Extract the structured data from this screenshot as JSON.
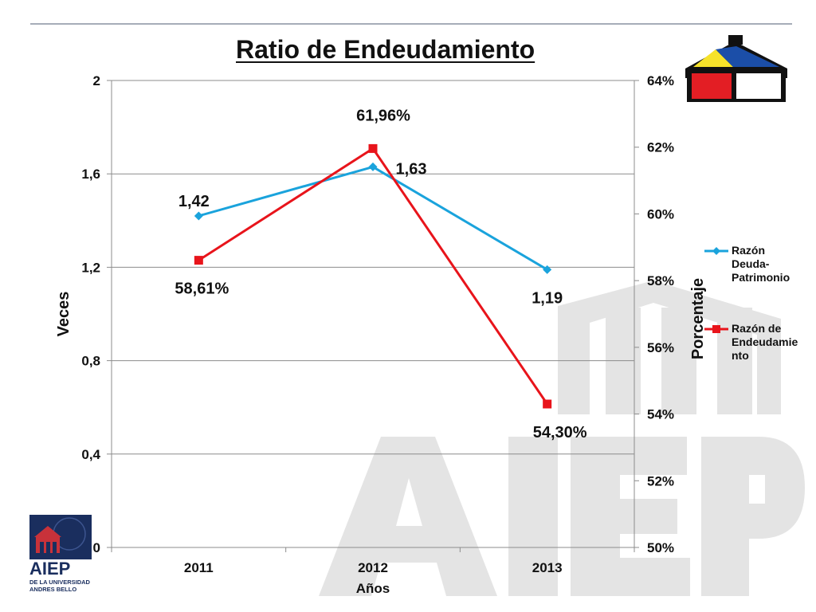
{
  "colors": {
    "series1": "#1aa3dc",
    "series2": "#e8141b",
    "axis": "#8c8c8c",
    "watermark": "#e6e6e6",
    "logo_navy": "#1a2e5e",
    "logo_red": "#e31e24",
    "logo_yellow": "#f6e22a",
    "logo_blue": "#1b4ea8"
  },
  "logo": {
    "brand": "AIEP",
    "line1": "DE LA UNIVERSIDAD",
    "line2": "ANDRES BELLO"
  },
  "watermark": {
    "text": "AIEP"
  },
  "chart_data": {
    "type": "line",
    "title": "Ratio de Endeudamiento",
    "xlabel": "Años",
    "ylabel": "Veces",
    "y2label": "Porcentaje",
    "categories": [
      "2011",
      "2012",
      "2013"
    ],
    "y_ticks": [
      "0",
      "0,4",
      "0,8",
      "1,2",
      "1,6",
      "2"
    ],
    "y2_ticks": [
      "50%",
      "52%",
      "54%",
      "56%",
      "58%",
      "60%",
      "62%",
      "64%"
    ],
    "ylim": [
      0,
      2
    ],
    "y2lim": [
      50,
      64
    ],
    "grid": true,
    "legend_position": "right",
    "series": [
      {
        "name": "Razón Deuda-Patrimonio",
        "axis": "left",
        "marker": "diamond",
        "values": [
          1.42,
          1.63,
          1.19
        ],
        "labels": [
          "1,42",
          "1,63",
          "1,19"
        ]
      },
      {
        "name": "Razón de Endeudamiento",
        "axis": "right",
        "marker": "square",
        "values": [
          58.61,
          61.96,
          54.3
        ],
        "labels": [
          "58,61%",
          "61,96%",
          "54,30%"
        ]
      }
    ],
    "legend": [
      "Razón Deuda-Patrimonio",
      "Razón de Endeudamiento"
    ],
    "legend_display": [
      [
        "Razón",
        "Deuda-",
        "Patrimonio"
      ],
      [
        "Razón de",
        "Endeudamie",
        "nto"
      ]
    ]
  }
}
